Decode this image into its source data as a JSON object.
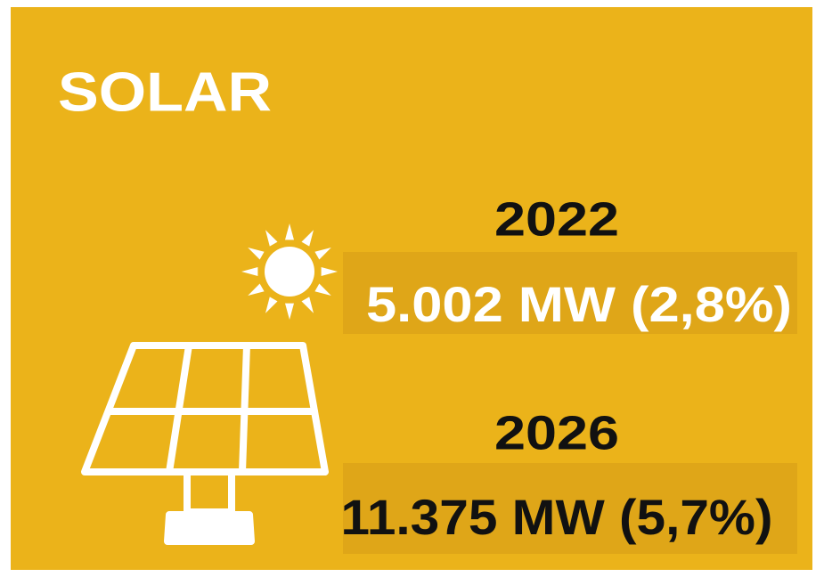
{
  "title": "SOLAR",
  "items": [
    {
      "year": "2022",
      "value": "5.002 MW (2,8%)"
    },
    {
      "year": "2026",
      "value": "11.375 MW (5,7%)"
    }
  ]
}
